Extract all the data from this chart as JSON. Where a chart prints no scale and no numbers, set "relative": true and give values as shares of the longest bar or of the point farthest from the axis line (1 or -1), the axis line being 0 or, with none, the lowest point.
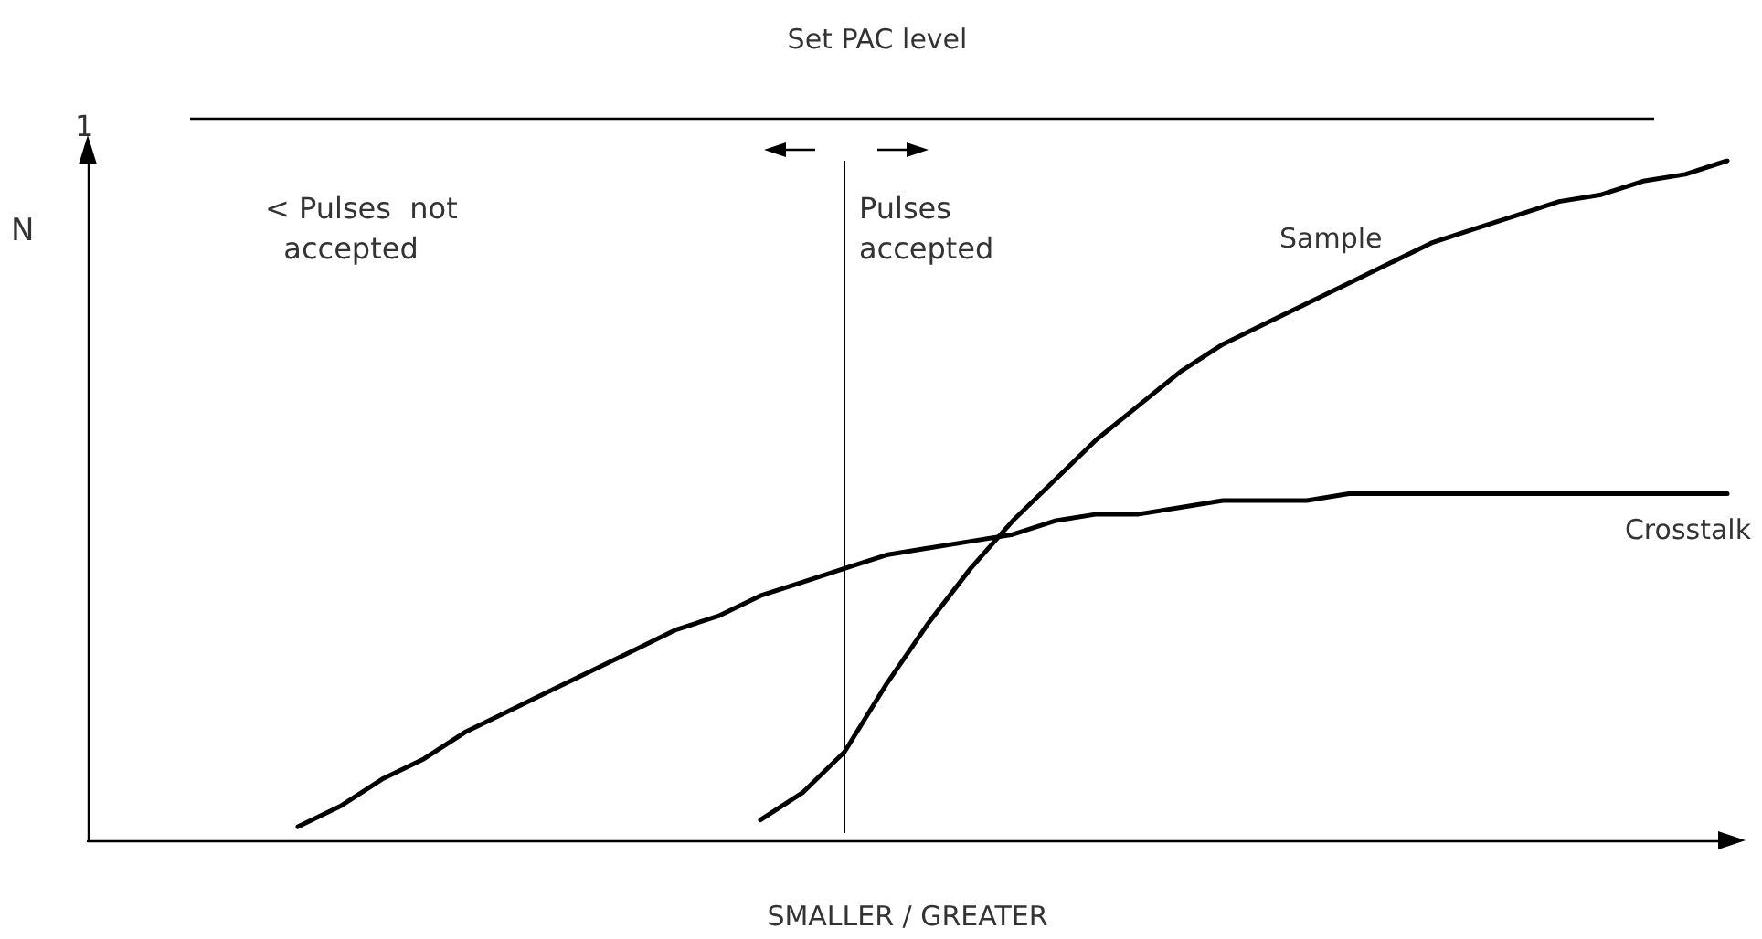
{
  "chart_data": {
    "type": "line",
    "title": "Set PAC level",
    "xlabel": "SMALLER / GREATER",
    "ylabel": "N",
    "relative": true,
    "grid": false,
    "legend": false,
    "marker": "none",
    "line_style": "solid",
    "annotations": [
      "1",
      "< Pulses  not\n  accepted",
      "Pulses\naccepted"
    ],
    "categories": [
      null,
      null,
      null,
      null,
      null,
      null,
      null,
      null,
      null,
      null,
      null,
      null,
      null,
      null,
      null,
      null,
      null,
      null,
      null,
      null,
      null,
      null,
      null,
      null,
      null,
      null,
      null,
      null,
      null,
      null,
      null,
      null,
      null,
      null,
      null,
      null,
      null,
      null,
      null,
      null
    ],
    "series": [
      {
        "name": "Sample",
        "color": "#000000",
        "values": [
          null,
          null,
          null,
          null,
          null,
          null,
          null,
          null,
          null,
          null,
          null,
          null,
          null,
          null,
          null,
          null,
          0.03,
          0.07,
          0.13,
          0.23,
          0.32,
          0.4,
          0.47,
          0.53,
          0.59,
          0.64,
          0.69,
          0.73,
          0.76,
          0.79,
          0.82,
          0.85,
          0.88,
          0.9,
          0.92,
          0.94,
          0.95,
          0.97,
          0.98,
          1
        ]
      },
      {
        "name": "Crosstalk",
        "color": "#000000",
        "values": [
          null,
          null,
          null,
          null,
          null,
          0.02,
          0.05,
          0.09,
          0.12,
          0.16,
          0.19,
          0.22,
          0.25,
          0.28,
          0.31,
          0.33,
          0.36,
          0.38,
          0.4,
          0.42,
          0.43,
          0.44,
          0.45,
          0.47,
          0.48,
          0.48,
          0.49,
          0.5,
          0.5,
          0.5,
          0.51,
          0.51,
          0.51,
          0.51,
          0.51,
          0.51,
          0.51,
          0.51,
          0.51,
          0.51
        ]
      }
    ]
  }
}
